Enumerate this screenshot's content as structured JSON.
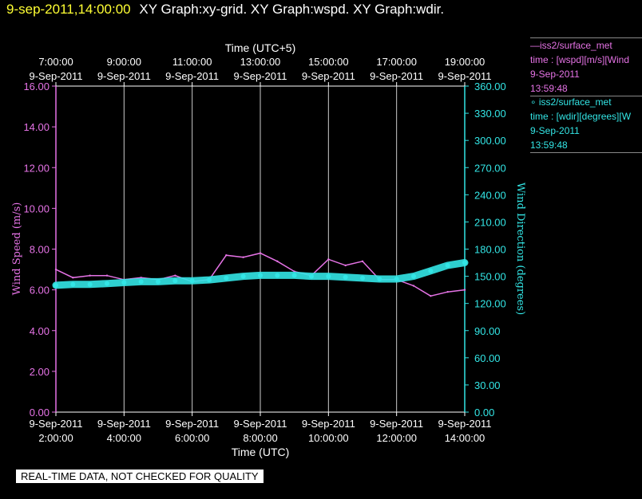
{
  "header": {
    "timestamp": "9-sep-2011,14:00:00",
    "graphs": "XY Graph:xy-grid.  XY Graph:wspd.  XY Graph:wdir."
  },
  "legend": [
    {
      "line1": "—iss2/surface_met",
      "line2": "time : [wspd][m/s][Wind",
      "line3": "9-Sep-2011",
      "line4": "13:59:48",
      "color": "#e673e6"
    },
    {
      "line1": "∘ iss2/surface_met",
      "line2": "time : [wdir][degrees][W",
      "line3": "9-Sep-2011",
      "line4": "13:59:48",
      "color": "#33e6e6"
    }
  ],
  "footer": {
    "quality_note": "REAL-TIME DATA, NOT CHECKED FOR QUALITY"
  },
  "chart_data": {
    "type": "line",
    "top_axis_title": "Time (UTC+5)",
    "top_tick_labels": [
      [
        "7:00:00",
        "9-Sep-2011"
      ],
      [
        "9:00:00",
        "9-Sep-2011"
      ],
      [
        "11:00:00",
        "9-Sep-2011"
      ],
      [
        "13:00:00",
        "9-Sep-2011"
      ],
      [
        "15:00:00",
        "9-Sep-2011"
      ],
      [
        "17:00:00",
        "9-Sep-2011"
      ],
      [
        "19:00:00",
        "9-Sep-2011"
      ]
    ],
    "xlabel": "Time (UTC)",
    "x_tick_labels": [
      [
        "9-Sep-2011",
        "2:00:00"
      ],
      [
        "9-Sep-2011",
        "4:00:00"
      ],
      [
        "9-Sep-2011",
        "6:00:00"
      ],
      [
        "9-Sep-2011",
        "8:00:00"
      ],
      [
        "9-Sep-2011",
        "10:00:00"
      ],
      [
        "9-Sep-2011",
        "12:00:00"
      ],
      [
        "9-Sep-2011",
        "14:00:00"
      ]
    ],
    "xlim": [
      "9-Sep-2011 02:00",
      "9-Sep-2011 14:00"
    ],
    "ylabel": "Wind Speed (m/s)",
    "ylim": [
      0,
      16
    ],
    "y_tick_labels": [
      "0.00",
      "2.00",
      "4.00",
      "6.00",
      "8.00",
      "10.00",
      "12.00",
      "14.00",
      "16.00"
    ],
    "y2label": "Wind Direction (degrees)",
    "y2lim": [
      0,
      360
    ],
    "y2_tick_labels": [
      "0.00",
      "30.00",
      "60.00",
      "90.00",
      "120.00",
      "150.00",
      "180.00",
      "210.00",
      "240.00",
      "270.00",
      "300.00",
      "330.00",
      "360.00"
    ],
    "grid": "vertical",
    "series": [
      {
        "name": "iss2/surface_met wspd",
        "axis": "left",
        "color": "#e673e6",
        "style": "line",
        "x": [
          "02:00",
          "02:30",
          "03:00",
          "03:30",
          "04:00",
          "04:30",
          "05:00",
          "05:30",
          "06:00",
          "06:30",
          "07:00",
          "07:30",
          "08:00",
          "08:30",
          "09:00",
          "09:30",
          "10:00",
          "10:30",
          "11:00",
          "11:30",
          "12:00",
          "12:30",
          "13:00",
          "13:30",
          "14:00"
        ],
        "values": [
          7.0,
          6.6,
          6.7,
          6.7,
          6.5,
          6.6,
          6.5,
          6.7,
          6.4,
          6.5,
          7.7,
          7.6,
          7.8,
          7.4,
          6.9,
          6.7,
          7.5,
          7.2,
          7.4,
          6.5,
          6.5,
          6.2,
          5.7,
          5.9,
          6.0
        ]
      },
      {
        "name": "iss2/surface_met wdir",
        "axis": "right",
        "color": "#33e6e6",
        "style": "markers",
        "x": [
          "02:00",
          "02:30",
          "03:00",
          "03:30",
          "04:00",
          "04:30",
          "05:00",
          "05:30",
          "06:00",
          "06:30",
          "07:00",
          "07:30",
          "08:00",
          "08:30",
          "09:00",
          "09:30",
          "10:00",
          "10:30",
          "11:00",
          "11:30",
          "12:00",
          "12:30",
          "13:00",
          "13:30",
          "14:00"
        ],
        "values": [
          140,
          141,
          141,
          142,
          143,
          144,
          144,
          145,
          145,
          146,
          148,
          150,
          151,
          151,
          151,
          150,
          150,
          149,
          148,
          147,
          147,
          150,
          156,
          162,
          165
        ]
      }
    ]
  }
}
